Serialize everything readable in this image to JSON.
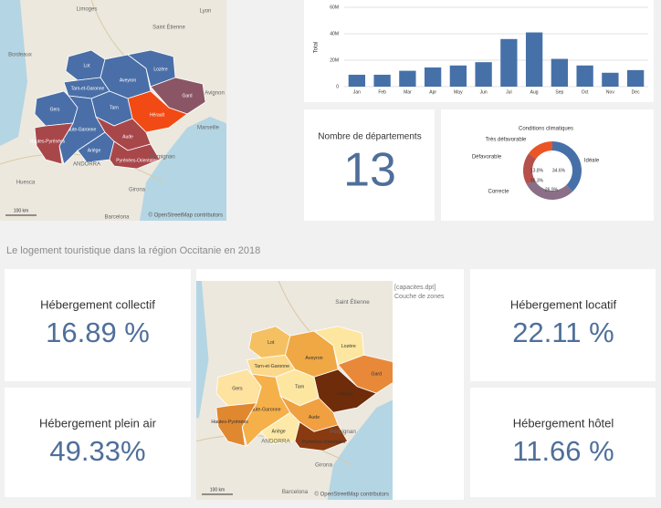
{
  "chart_data": [
    {
      "type": "bar",
      "y_label": "Total",
      "categories": [
        "Jan",
        "Feb",
        "Mar",
        "Apr",
        "May",
        "Jun",
        "Jul",
        "Aug",
        "Sep",
        "Oct",
        "Nov",
        "Dec"
      ],
      "values": [
        9000000,
        9000000,
        12000000,
        14500000,
        16000000,
        18500000,
        36000000,
        41000000,
        21000000,
        16000000,
        10500000,
        12500000
      ],
      "color": "#4671a8",
      "ylim": [
        0,
        60000000
      ],
      "yticks": [
        0,
        {
          "value": 20000000,
          "label": "20M"
        },
        {
          "value": 40000000,
          "label": "40M"
        },
        {
          "value": 60000000,
          "label": "60M"
        }
      ],
      "grid": true
    },
    {
      "type": "pie",
      "title": "Conditions climatiques",
      "categories": [
        "Idéale",
        "Correcte",
        "Défavorable",
        "Très défavorable"
      ],
      "values": [
        34.6,
        26.9,
        16.3,
        13.8
      ],
      "value_labels": [
        "34.6%",
        "26.9%",
        "16.3%",
        "13.8%"
      ],
      "colors": [
        "#4671a8",
        "#8a6f86",
        "#b5504a",
        "#ea5528"
      ]
    }
  ],
  "top_map": {
    "cities": [
      "Limoges",
      "Lyon",
      "Saint Étienne",
      "Bordeaux",
      "Avignon",
      "Marseille",
      "ANDORRA",
      "Perpignan",
      "Huesca",
      "Girona",
      "Barcelona"
    ],
    "departments": [
      {
        "name": "Lot",
        "color": "#4a6fa8"
      },
      {
        "name": "Aveyron",
        "color": "#4a6fa8"
      },
      {
        "name": "Lozère",
        "color": "#4a6fa8"
      },
      {
        "name": "Gard",
        "color": "#8a5565"
      },
      {
        "name": "Hérault",
        "color": "#f24a14"
      },
      {
        "name": "Tarn-et-Garonne",
        "color": "#4a6fa8"
      },
      {
        "name": "Tarn",
        "color": "#4a6fa8"
      },
      {
        "name": "Gers",
        "color": "#4a6fa8"
      },
      {
        "name": "Haute-Garonne",
        "color": "#4a6fa8"
      },
      {
        "name": "Hautes-Pyrénées",
        "color": "#a8474a"
      },
      {
        "name": "Ariège",
        "color": "#4a6fa8"
      },
      {
        "name": "Aude",
        "color": "#a8474a"
      },
      {
        "name": "Pyrénées-Orientales",
        "color": "#a8474a"
      }
    ],
    "scale": "100 km",
    "attribution": "© OpenStreetMap contributors"
  },
  "kpi_departements": {
    "label": "Nombre de départements",
    "value": "13"
  },
  "section_title": "Le logement touristique dans la région Occitanie en 2018",
  "cards": [
    {
      "label": "Hébergement collectif",
      "value": "16.89 %"
    },
    {
      "label": "Hébergement plein air",
      "value": "49.33%"
    },
    {
      "label": "Hébergement locatif",
      "value": "22.11 %"
    },
    {
      "label": "Hébergement hôtel",
      "value": "11.66 %"
    }
  ],
  "bottom_map": {
    "cities": [
      "Saint Étienne",
      "ANDORRA",
      "Perpignan",
      "Girona",
      "Barcelona"
    ],
    "departments": [
      {
        "name": "Lot",
        "color": "#f5c061"
      },
      {
        "name": "Aveyron",
        "color": "#f0a844"
      },
      {
        "name": "Lozère",
        "color": "#fde7a0"
      },
      {
        "name": "Gard",
        "color": "#e8893a"
      },
      {
        "name": "Hérault",
        "color": "#6e2c0a"
      },
      {
        "name": "Tarn-et-Garonne",
        "color": "#fcd98a"
      },
      {
        "name": "Tarn",
        "color": "#fde7a0"
      },
      {
        "name": "Gers",
        "color": "#fde2a0"
      },
      {
        "name": "Haute-Garonne",
        "color": "#f5b04a"
      },
      {
        "name": "Hautes-Pyrénées",
        "color": "#e0882f"
      },
      {
        "name": "Ariège",
        "color": "#fdeaa8"
      },
      {
        "name": "Aude",
        "color": "#f0a040"
      },
      {
        "name": "Pyrénées-Orientales",
        "color": "#8a3a10"
      }
    ],
    "legend": [
      "[capacites.dpt]",
      "Couche de zones"
    ],
    "scale": "100 km",
    "attribution": "© OpenStreetMap contributors"
  }
}
